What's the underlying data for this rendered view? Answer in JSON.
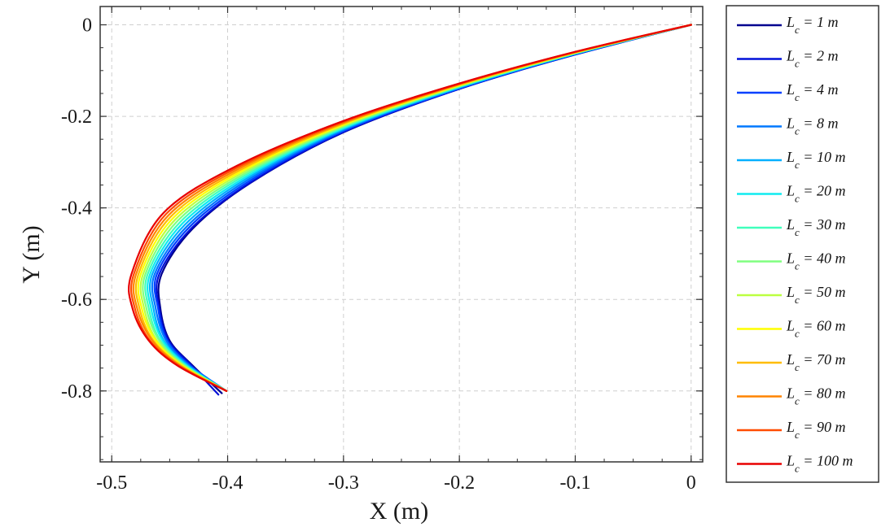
{
  "chart_data": {
    "type": "line",
    "title": "",
    "xlabel": "X (m)",
    "ylabel": "Y (m)",
    "xlim": [
      -0.51,
      0.01
    ],
    "ylim": [
      -0.955,
      0.04
    ],
    "xticks": [
      -0.5,
      -0.4,
      -0.3,
      -0.2,
      -0.1,
      0
    ],
    "xtick_labels": [
      "-0.5",
      "-0.4",
      "-0.3",
      "-0.2",
      "-0.1",
      "0"
    ],
    "yticks": [
      0,
      -0.2,
      -0.4,
      -0.6,
      -0.8
    ],
    "ytick_labels": [
      "0",
      "-0.2",
      "-0.4",
      "-0.6",
      "-0.8"
    ],
    "grid": true,
    "legend_position": "outside-right",
    "legend_symbol": "L",
    "legend_subscript": "c",
    "series": [
      {
        "name": "= 1 m",
        "color": "#00008f",
        "points": [
          [
            0,
            0
          ],
          [
            -0.1,
            -0.065
          ],
          [
            -0.2,
            -0.14
          ],
          [
            -0.3,
            -0.235
          ],
          [
            -0.38,
            -0.345
          ],
          [
            -0.43,
            -0.445
          ],
          [
            -0.457,
            -0.545
          ],
          [
            -0.458,
            -0.62
          ],
          [
            -0.45,
            -0.69
          ],
          [
            -0.43,
            -0.745
          ],
          [
            -0.405,
            -0.805
          ]
        ]
      },
      {
        "name": "= 2 m",
        "color": "#0010d8",
        "points": [
          [
            0,
            0
          ],
          [
            -0.1,
            -0.065
          ],
          [
            -0.2,
            -0.14
          ],
          [
            -0.3,
            -0.234
          ],
          [
            -0.38,
            -0.344
          ],
          [
            -0.431,
            -0.444
          ],
          [
            -0.459,
            -0.545
          ],
          [
            -0.459,
            -0.62
          ],
          [
            -0.451,
            -0.69
          ],
          [
            -0.431,
            -0.745
          ],
          [
            -0.408,
            -0.808
          ]
        ]
      },
      {
        "name": "= 4 m",
        "color": "#0040ff",
        "points": [
          [
            0,
            0
          ],
          [
            -0.1,
            -0.064
          ],
          [
            -0.2,
            -0.139
          ],
          [
            -0.3,
            -0.232
          ],
          [
            -0.381,
            -0.341
          ],
          [
            -0.433,
            -0.442
          ],
          [
            -0.461,
            -0.545
          ],
          [
            -0.46,
            -0.62
          ],
          [
            -0.452,
            -0.69
          ],
          [
            -0.432,
            -0.745
          ],
          [
            -0.401,
            -0.8
          ]
        ]
      },
      {
        "name": "= 8 m",
        "color": "#0078ff",
        "points": [
          [
            0,
            0
          ],
          [
            -0.1,
            -0.064
          ],
          [
            -0.2,
            -0.138
          ],
          [
            -0.3,
            -0.23
          ],
          [
            -0.382,
            -0.338
          ],
          [
            -0.435,
            -0.44
          ],
          [
            -0.463,
            -0.545
          ],
          [
            -0.462,
            -0.62
          ],
          [
            -0.453,
            -0.69
          ],
          [
            -0.433,
            -0.745
          ],
          [
            -0.401,
            -0.8
          ]
        ]
      },
      {
        "name": "= 10 m",
        "color": "#00b0ff",
        "points": [
          [
            0,
            0
          ],
          [
            -0.1,
            -0.063
          ],
          [
            -0.2,
            -0.137
          ],
          [
            -0.3,
            -0.228
          ],
          [
            -0.383,
            -0.335
          ],
          [
            -0.437,
            -0.437
          ],
          [
            -0.465,
            -0.545
          ],
          [
            -0.464,
            -0.62
          ],
          [
            -0.455,
            -0.69
          ],
          [
            -0.434,
            -0.745
          ],
          [
            -0.401,
            -0.8
          ]
        ]
      },
      {
        "name": "= 20 m",
        "color": "#10ecf0",
        "points": [
          [
            0,
            0
          ],
          [
            -0.1,
            -0.063
          ],
          [
            -0.2,
            -0.136
          ],
          [
            -0.3,
            -0.226
          ],
          [
            -0.384,
            -0.332
          ],
          [
            -0.439,
            -0.434
          ],
          [
            -0.467,
            -0.545
          ],
          [
            -0.466,
            -0.62
          ],
          [
            -0.456,
            -0.69
          ],
          [
            -0.435,
            -0.745
          ],
          [
            -0.401,
            -0.8
          ]
        ]
      },
      {
        "name": "= 30 m",
        "color": "#40ffbc",
        "points": [
          [
            0,
            0
          ],
          [
            -0.1,
            -0.062
          ],
          [
            -0.2,
            -0.135
          ],
          [
            -0.3,
            -0.224
          ],
          [
            -0.385,
            -0.329
          ],
          [
            -0.441,
            -0.431
          ],
          [
            -0.469,
            -0.545
          ],
          [
            -0.468,
            -0.62
          ],
          [
            -0.458,
            -0.69
          ],
          [
            -0.436,
            -0.745
          ],
          [
            -0.401,
            -0.8
          ]
        ]
      },
      {
        "name": "= 40 m",
        "color": "#80ff80",
        "points": [
          [
            0,
            0
          ],
          [
            -0.1,
            -0.062
          ],
          [
            -0.2,
            -0.134
          ],
          [
            -0.3,
            -0.222
          ],
          [
            -0.386,
            -0.326
          ],
          [
            -0.443,
            -0.428
          ],
          [
            -0.471,
            -0.545
          ],
          [
            -0.47,
            -0.62
          ],
          [
            -0.459,
            -0.69
          ],
          [
            -0.437,
            -0.745
          ],
          [
            -0.401,
            -0.8
          ]
        ]
      },
      {
        "name": "= 50 m",
        "color": "#bcff40",
        "points": [
          [
            0,
            0
          ],
          [
            -0.1,
            -0.061
          ],
          [
            -0.2,
            -0.133
          ],
          [
            -0.3,
            -0.22
          ],
          [
            -0.387,
            -0.323
          ],
          [
            -0.445,
            -0.425
          ],
          [
            -0.473,
            -0.545
          ],
          [
            -0.472,
            -0.62
          ],
          [
            -0.461,
            -0.69
          ],
          [
            -0.438,
            -0.745
          ],
          [
            -0.401,
            -0.8
          ]
        ]
      },
      {
        "name": "= 60 m",
        "color": "#ffff00",
        "points": [
          [
            0,
            0
          ],
          [
            -0.1,
            -0.061
          ],
          [
            -0.2,
            -0.132
          ],
          [
            -0.3,
            -0.218
          ],
          [
            -0.388,
            -0.32
          ],
          [
            -0.447,
            -0.422
          ],
          [
            -0.475,
            -0.545
          ],
          [
            -0.474,
            -0.62
          ],
          [
            -0.462,
            -0.69
          ],
          [
            -0.439,
            -0.745
          ],
          [
            -0.401,
            -0.8
          ]
        ]
      },
      {
        "name": "= 70 m",
        "color": "#ffbc00",
        "points": [
          [
            0,
            0
          ],
          [
            -0.1,
            -0.06
          ],
          [
            -0.2,
            -0.131
          ],
          [
            -0.3,
            -0.216
          ],
          [
            -0.389,
            -0.317
          ],
          [
            -0.449,
            -0.419
          ],
          [
            -0.477,
            -0.545
          ],
          [
            -0.476,
            -0.62
          ],
          [
            -0.464,
            -0.69
          ],
          [
            -0.44,
            -0.745
          ],
          [
            -0.401,
            -0.8
          ]
        ]
      },
      {
        "name": "= 80 m",
        "color": "#ff8400",
        "points": [
          [
            0,
            0
          ],
          [
            -0.1,
            -0.06
          ],
          [
            -0.2,
            -0.13
          ],
          [
            -0.3,
            -0.214
          ],
          [
            -0.39,
            -0.314
          ],
          [
            -0.451,
            -0.416
          ],
          [
            -0.479,
            -0.545
          ],
          [
            -0.478,
            -0.62
          ],
          [
            -0.465,
            -0.69
          ],
          [
            -0.441,
            -0.745
          ],
          [
            -0.401,
            -0.8
          ]
        ]
      },
      {
        "name": "= 90 m",
        "color": "#ff4c00",
        "points": [
          [
            0,
            0
          ],
          [
            -0.1,
            -0.059
          ],
          [
            -0.2,
            -0.129
          ],
          [
            -0.3,
            -0.212
          ],
          [
            -0.391,
            -0.311
          ],
          [
            -0.453,
            -0.413
          ],
          [
            -0.481,
            -0.545
          ],
          [
            -0.48,
            -0.62
          ],
          [
            -0.467,
            -0.69
          ],
          [
            -0.442,
            -0.745
          ],
          [
            -0.401,
            -0.8
          ]
        ]
      },
      {
        "name": "= 100 m",
        "color": "#e80000",
        "points": [
          [
            0,
            0
          ],
          [
            -0.1,
            -0.059
          ],
          [
            -0.2,
            -0.128
          ],
          [
            -0.3,
            -0.21
          ],
          [
            -0.392,
            -0.308
          ],
          [
            -0.455,
            -0.41
          ],
          [
            -0.483,
            -0.545
          ],
          [
            -0.482,
            -0.62
          ],
          [
            -0.468,
            -0.69
          ],
          [
            -0.443,
            -0.745
          ],
          [
            -0.401,
            -0.8
          ]
        ]
      }
    ]
  }
}
